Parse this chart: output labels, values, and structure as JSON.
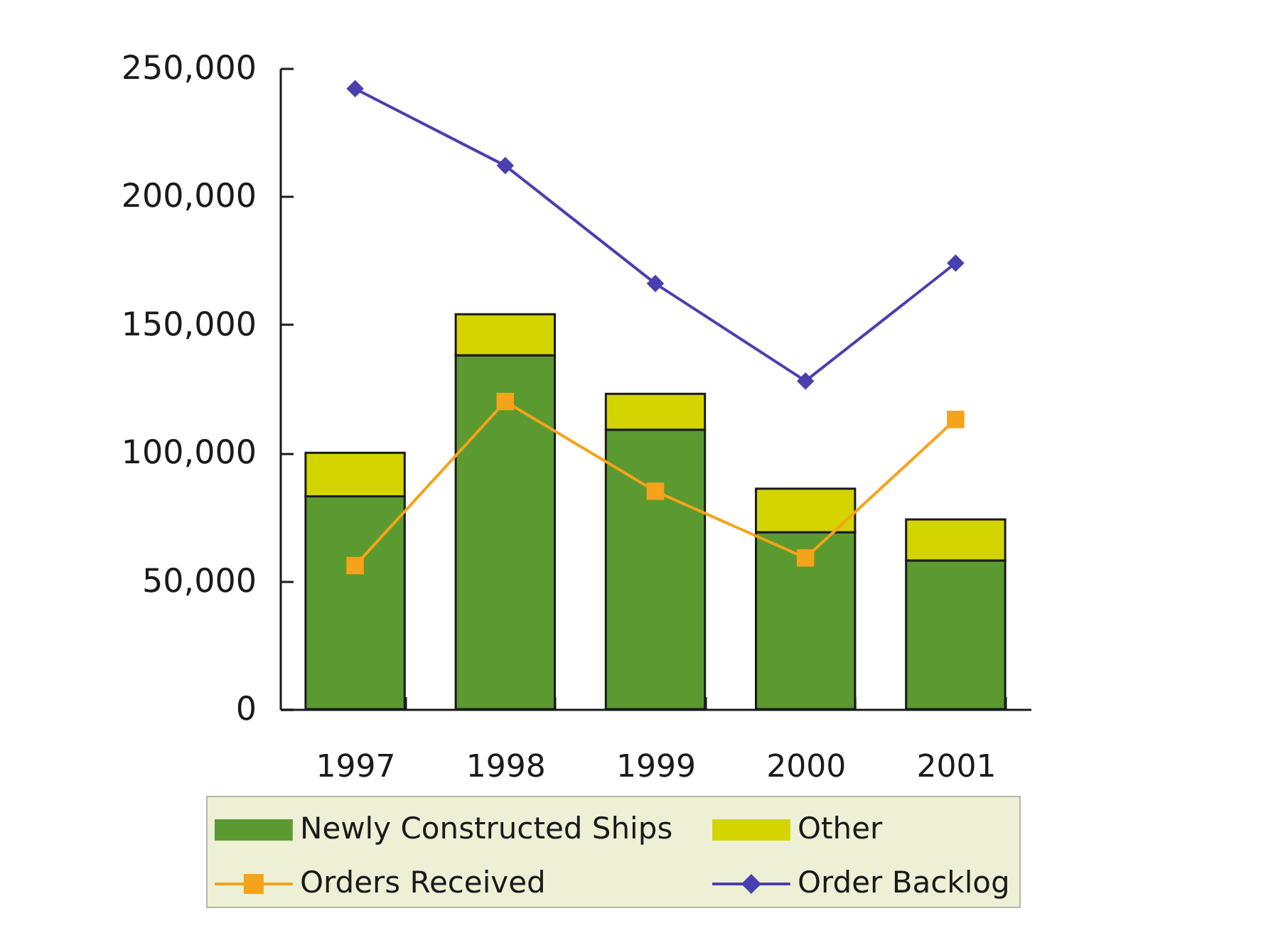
{
  "chart_data": {
    "type": "bar",
    "stacked": true,
    "categories": [
      "1997",
      "1998",
      "1999",
      "2000",
      "2001"
    ],
    "series": [
      {
        "name": "Newly Constructed Ships",
        "color": "#5b9a30",
        "values": [
          83000,
          138000,
          109000,
          69000,
          58000
        ]
      },
      {
        "name": "Other",
        "color": "#d4d400",
        "values": [
          17000,
          16000,
          14000,
          17000,
          16000
        ]
      },
      {
        "name": "Orders Received",
        "type": "line",
        "color": "#f5a31a",
        "marker": "square",
        "values": [
          56000,
          120000,
          85000,
          59000,
          113000
        ]
      },
      {
        "name": "Order Backlog",
        "type": "line",
        "color": "#4a3fb0",
        "marker": "diamond",
        "values": [
          242000,
          212000,
          166000,
          128000,
          174000
        ]
      }
    ],
    "ylim": [
      0,
      250000
    ],
    "yticks": [
      0,
      {
        "value": 50000,
        "label": "50,000"
      },
      {
        "value": 100000,
        "label": "100,000"
      },
      {
        "value": 150000,
        "label": "150,000"
      },
      {
        "value": 200000,
        "label": "200,000"
      },
      {
        "value": 250000,
        "label": "250,000"
      }
    ],
    "grid": false,
    "legend": "bottom"
  }
}
